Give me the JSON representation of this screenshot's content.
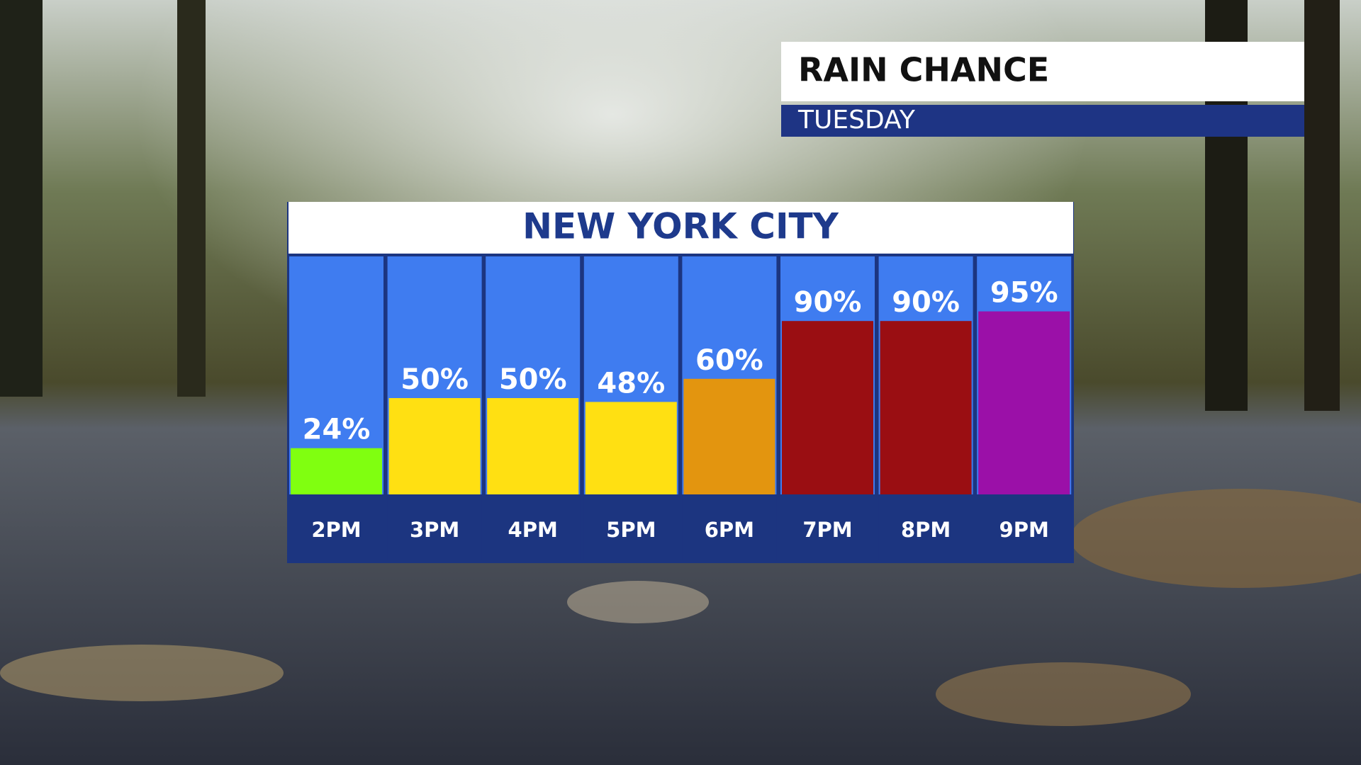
{
  "chart_data": {
    "type": "bar",
    "title": "RAIN CHANCE",
    "subtitle": "TUESDAY",
    "heading": "NEW YORK CITY",
    "categories": [
      "2PM",
      "3PM",
      "4PM",
      "5PM",
      "6PM",
      "7PM",
      "8PM",
      "9PM"
    ],
    "values": [
      24,
      50,
      50,
      48,
      60,
      90,
      90,
      95
    ],
    "value_labels": [
      "24%",
      "50%",
      "50%",
      "48%",
      "60%",
      "90%",
      "90%",
      "95%"
    ],
    "colors": [
      "#80ff10",
      "#ffe012",
      "#ffe012",
      "#ffe012",
      "#e3950f",
      "#9a0e12",
      "#9a0e12",
      "#9b10a8"
    ]
  }
}
